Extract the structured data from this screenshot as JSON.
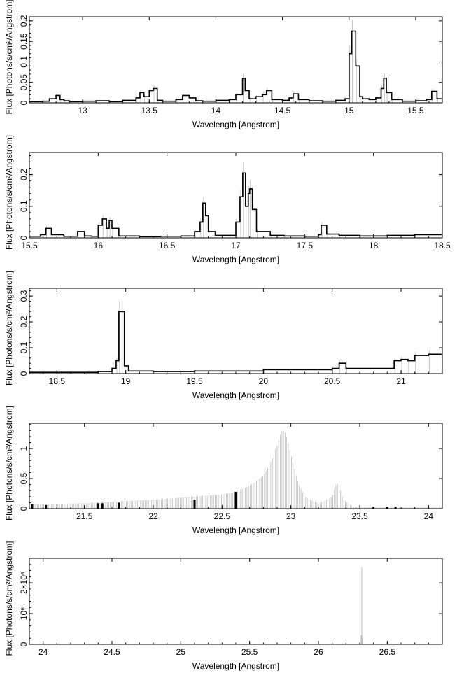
{
  "chart_data": [
    {
      "type": "line",
      "xlabel": "Wavelength [Angstrom]",
      "ylabel": "Flux [Photons/s/cm²/Angstrom]",
      "xlim": [
        12.6,
        15.7
      ],
      "ylim": [
        0,
        0.21
      ],
      "xticks": [
        13,
        13.5,
        14,
        14.5,
        15,
        15.5
      ],
      "yticks": [
        0,
        0.05,
        0.1,
        0.15,
        0.2
      ],
      "ytick_labels": [
        "0",
        "0.05",
        "0.1",
        "0.15",
        "0.2"
      ],
      "grid": false,
      "series": [
        {
          "style": "step",
          "color": "#000000",
          "x": [
            12.6,
            12.7,
            12.75,
            12.8,
            12.83,
            12.86,
            12.9,
            13.0,
            13.1,
            13.2,
            13.3,
            13.4,
            13.43,
            13.46,
            13.5,
            13.53,
            13.56,
            13.6,
            13.7,
            13.75,
            13.8,
            13.85,
            13.9,
            14.0,
            14.1,
            14.15,
            14.2,
            14.22,
            14.25,
            14.3,
            14.35,
            14.38,
            14.42,
            14.5,
            14.55,
            14.58,
            14.62,
            14.7,
            14.8,
            14.9,
            14.97,
            15.0,
            15.02,
            15.05,
            15.08,
            15.1,
            15.15,
            15.2,
            15.24,
            15.26,
            15.28,
            15.32,
            15.4,
            15.5,
            15.58,
            15.62,
            15.66,
            15.7
          ],
          "y": [
            0.003,
            0.004,
            0.01,
            0.018,
            0.008,
            0.005,
            0.003,
            0.004,
            0.005,
            0.003,
            0.006,
            0.012,
            0.025,
            0.015,
            0.03,
            0.035,
            0.006,
            0.004,
            0.008,
            0.018,
            0.012,
            0.005,
            0.004,
            0.006,
            0.008,
            0.02,
            0.06,
            0.03,
            0.01,
            0.015,
            0.02,
            0.03,
            0.008,
            0.006,
            0.012,
            0.022,
            0.008,
            0.005,
            0.004,
            0.006,
            0.01,
            0.12,
            0.175,
            0.09,
            0.015,
            0.01,
            0.008,
            0.012,
            0.035,
            0.06,
            0.025,
            0.008,
            0.004,
            0.005,
            0.008,
            0.028,
            0.01,
            0.005
          ]
        }
      ]
    },
    {
      "type": "line",
      "xlabel": "Wavelength [Angstrom]",
      "ylabel": "Flux [Photons/s/cm²/Angstrom]",
      "xlim": [
        15.5,
        18.5
      ],
      "ylim": [
        0,
        0.27
      ],
      "xticks": [
        15.5,
        16,
        16.5,
        17,
        17.5,
        18,
        18.5
      ],
      "yticks": [
        0,
        0.1,
        0.2
      ],
      "ytick_labels": [
        "0",
        "0.1",
        "0.2"
      ],
      "grid": false,
      "series": [
        {
          "style": "step",
          "color": "#000000",
          "x": [
            15.5,
            15.58,
            15.62,
            15.66,
            15.75,
            15.85,
            15.9,
            15.95,
            16.0,
            16.03,
            16.06,
            16.08,
            16.1,
            16.15,
            16.3,
            16.45,
            16.6,
            16.7,
            16.74,
            16.76,
            16.78,
            16.8,
            16.85,
            16.95,
            17.0,
            17.03,
            17.05,
            17.07,
            17.09,
            17.1,
            17.12,
            17.15,
            17.25,
            17.35,
            17.5,
            17.6,
            17.62,
            17.66,
            17.75,
            17.9,
            18.1,
            18.3,
            18.5
          ],
          "y": [
            0.005,
            0.01,
            0.03,
            0.01,
            0.005,
            0.02,
            0.006,
            0.005,
            0.04,
            0.06,
            0.03,
            0.055,
            0.03,
            0.006,
            0.004,
            0.005,
            0.006,
            0.02,
            0.05,
            0.11,
            0.07,
            0.02,
            0.008,
            0.008,
            0.05,
            0.13,
            0.205,
            0.1,
            0.14,
            0.155,
            0.09,
            0.02,
            0.008,
            0.006,
            0.005,
            0.01,
            0.04,
            0.012,
            0.008,
            0.006,
            0.008,
            0.01,
            0.01
          ]
        }
      ]
    },
    {
      "type": "line",
      "xlabel": "Wavelength [Angstrom]",
      "ylabel": "Flux [Photons/s/cm²/Angstrom]",
      "xlim": [
        18.3,
        21.3
      ],
      "ylim": [
        0,
        0.33
      ],
      "xticks": [
        18.5,
        19,
        19.5,
        20,
        20.5,
        21
      ],
      "yticks": [
        0,
        0.1,
        0.2,
        0.3
      ],
      "ytick_labels": [
        "0",
        "0.1",
        "0.2",
        "0.3"
      ],
      "grid": false,
      "series": [
        {
          "style": "step",
          "color": "#000000",
          "x": [
            18.3,
            18.6,
            18.8,
            18.9,
            18.93,
            18.95,
            18.97,
            18.99,
            19.02,
            19.2,
            19.5,
            20.0,
            20.5,
            20.55,
            20.6,
            20.95,
            21.0,
            21.05,
            21.1,
            21.2,
            21.3
          ],
          "y": [
            0.005,
            0.005,
            0.008,
            0.02,
            0.05,
            0.24,
            0.24,
            0.03,
            0.01,
            0.008,
            0.01,
            0.015,
            0.02,
            0.04,
            0.02,
            0.05,
            0.055,
            0.05,
            0.07,
            0.075,
            0.075
          ]
        }
      ]
    },
    {
      "type": "line",
      "xlabel": "Wavelength [Angstrom]",
      "ylabel": "Flux [Photons/s/cm²/Angstrom]",
      "xlim": [
        21.1,
        24.1
      ],
      "ylim": [
        0,
        1.42
      ],
      "xticks": [
        21.5,
        22,
        22.5,
        23,
        23.5,
        24
      ],
      "yticks": [
        0,
        0.5,
        1
      ],
      "ytick_labels": [
        "0",
        "0.5",
        "1"
      ],
      "grid": false,
      "series": [
        {
          "style": "error-band",
          "color": "#bbbbbb",
          "x": [
            21.1,
            21.5,
            22.0,
            22.3,
            22.5,
            22.6,
            22.7,
            22.8,
            22.85,
            22.9,
            22.93,
            22.95,
            22.97,
            23.0,
            23.05,
            23.1,
            23.2,
            23.3,
            23.33,
            23.35,
            23.38,
            23.45,
            23.6,
            24.1
          ],
          "y": [
            0.07,
            0.09,
            0.15,
            0.2,
            0.24,
            0.28,
            0.38,
            0.55,
            0.75,
            1.05,
            1.28,
            1.3,
            1.2,
            0.9,
            0.45,
            0.2,
            0.08,
            0.2,
            0.42,
            0.4,
            0.15,
            0.03,
            0.02,
            0.02
          ]
        },
        {
          "style": "bars",
          "color": "#000000",
          "x": [
            21.12,
            21.22,
            21.6,
            21.63,
            21.75,
            22.3,
            22.6,
            23.6,
            23.7,
            23.76
          ],
          "y": [
            0.07,
            0.06,
            0.09,
            0.09,
            0.1,
            0.15,
            0.28,
            0.03,
            0.03,
            0.03
          ]
        }
      ]
    },
    {
      "type": "line",
      "xlabel": "Wavelength [Angstrom]",
      "ylabel": "Flux [Photons/s/cm²/Angstrom]",
      "xlim": [
        23.9,
        26.9
      ],
      "ylim": [
        0,
        2800000
      ],
      "xticks": [
        24,
        24.5,
        25,
        25.5,
        26,
        26.5
      ],
      "yticks": [
        0,
        1000000,
        2000000
      ],
      "ytick_labels": [
        "0",
        "10⁶",
        "2×10⁶"
      ],
      "grid": false,
      "series": [
        {
          "style": "spike",
          "color": "#bbbbbb",
          "x": [
            26.31,
            26.315,
            26.32
          ],
          "y": [
            300000,
            2500000,
            200000
          ]
        }
      ]
    }
  ]
}
